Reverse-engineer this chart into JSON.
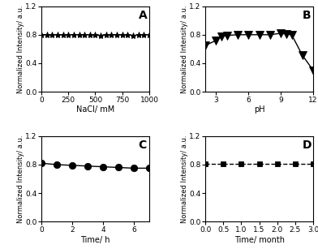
{
  "A": {
    "x": [
      0,
      50,
      100,
      150,
      200,
      250,
      300,
      350,
      400,
      450,
      500,
      550,
      600,
      650,
      700,
      750,
      800,
      850,
      900,
      950,
      1000
    ],
    "y": [
      0.8,
      0.8,
      0.8,
      0.8,
      0.8,
      0.8,
      0.8,
      0.8,
      0.8,
      0.8,
      0.8,
      0.79,
      0.8,
      0.8,
      0.8,
      0.8,
      0.8,
      0.79,
      0.8,
      0.8,
      0.8
    ],
    "xlabel": "NaCl/ mM",
    "ylabel": "Normalized Intensity/ a.u.",
    "label": "A",
    "marker": "*",
    "xlim": [
      0,
      1000
    ],
    "ylim": [
      0.0,
      1.2
    ],
    "yticks": [
      0.0,
      0.4,
      0.8,
      1.2
    ],
    "xticks": [
      0,
      250,
      500,
      750,
      1000
    ],
    "linestyle": "--"
  },
  "B": {
    "x": [
      2,
      3,
      3.5,
      4,
      5,
      6,
      7,
      8,
      9,
      9.5,
      10,
      11,
      12
    ],
    "y": [
      0.65,
      0.72,
      0.77,
      0.79,
      0.8,
      0.8,
      0.8,
      0.8,
      0.82,
      0.81,
      0.8,
      0.51,
      0.3
    ],
    "xlabel": "pH",
    "ylabel": "Normalized Intensity/ a.u.",
    "label": "B",
    "marker": "v",
    "xlim": [
      2,
      12
    ],
    "ylim": [
      0.0,
      1.2
    ],
    "yticks": [
      0.0,
      0.4,
      0.8,
      1.2
    ],
    "xticks": [
      3,
      6,
      9,
      12
    ],
    "linestyle": "-"
  },
  "C": {
    "x": [
      0,
      1,
      2,
      3,
      4,
      5,
      6,
      7
    ],
    "y": [
      0.82,
      0.8,
      0.79,
      0.78,
      0.77,
      0.76,
      0.75,
      0.75
    ],
    "xlabel": "Time/ h",
    "ylabel": "Normalized Intensity/ a.u.",
    "label": "C",
    "marker": "o",
    "xlim": [
      0,
      7
    ],
    "ylim": [
      0.0,
      1.2
    ],
    "yticks": [
      0.0,
      0.4,
      0.8,
      1.2
    ],
    "xticks": [
      0,
      2,
      4,
      6
    ],
    "linestyle": "-"
  },
  "D": {
    "x": [
      0.0,
      0.5,
      1.0,
      1.5,
      2.0,
      2.5,
      3.0
    ],
    "y": [
      0.81,
      0.81,
      0.81,
      0.81,
      0.81,
      0.81,
      0.81
    ],
    "xlabel": "Time/ month",
    "ylabel": "Normalized Intensity/ a.u.",
    "label": "D",
    "marker": "s",
    "xlim": [
      0.0,
      3.0
    ],
    "ylim": [
      0.0,
      1.2
    ],
    "yticks": [
      0.0,
      0.4,
      0.8,
      1.2
    ],
    "xticks": [
      0.0,
      0.5,
      1.0,
      1.5,
      2.0,
      2.5,
      3.0
    ],
    "linestyle": "--"
  }
}
